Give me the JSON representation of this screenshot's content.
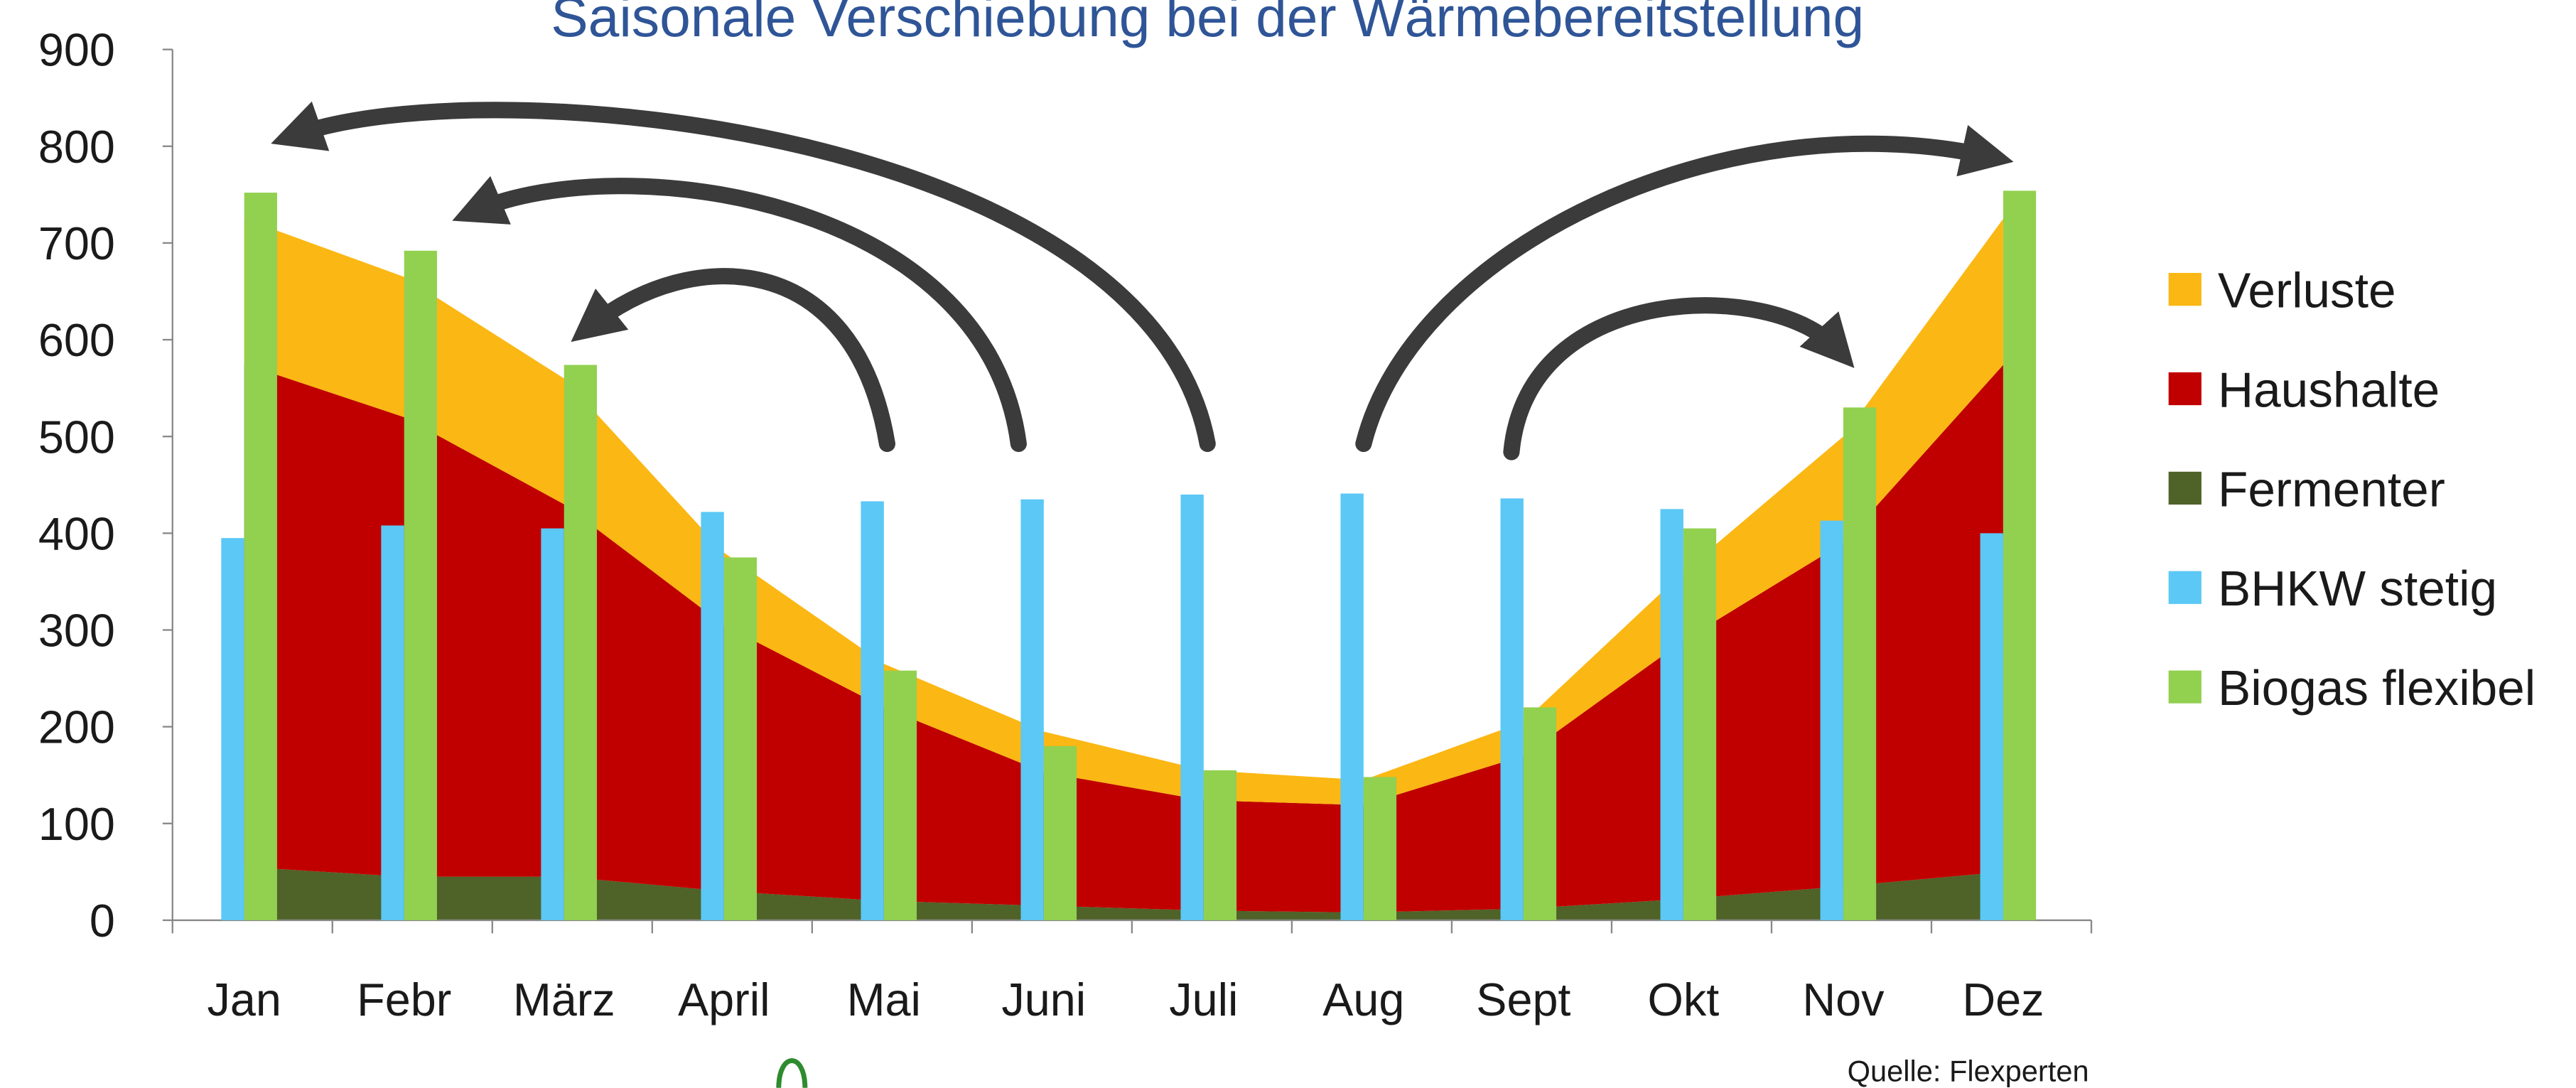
{
  "chart_data": {
    "type": "combo",
    "title": "Saisonale Verschiebung bei der Wärmebereitstellung",
    "source": "Quelle: Flexperten",
    "categories": [
      "Jan",
      "Febr",
      "März",
      "April",
      "Mai",
      "Juni",
      "Juli",
      "Aug",
      "Sept",
      "Okt",
      "Nov",
      "Dez"
    ],
    "ylim": [
      0,
      900
    ],
    "yticks": [
      0,
      100,
      200,
      300,
      400,
      500,
      600,
      700,
      800,
      900
    ],
    "legend": "right",
    "series": [
      {
        "name": "Verluste",
        "type": "area",
        "color": "#fbb714",
        "values": [
          150,
          145,
          130,
          75,
          45,
          42,
          31,
          26,
          35,
          71,
          110,
          151
        ]
      },
      {
        "name": "Haushalte",
        "type": "area",
        "color": "#c00000",
        "values": [
          520,
          475,
          385,
          275,
          200,
          138,
          114,
          111,
          158,
          267,
          355,
          524
        ]
      },
      {
        "name": "Fermenter",
        "type": "area",
        "color": "#4f6228",
        "values": [
          55,
          45,
          45,
          30,
          20,
          15,
          10,
          8,
          12,
          22,
          35,
          50
        ]
      },
      {
        "name": "BHKW stetig",
        "type": "bar",
        "color": "#5bc8f5",
        "values": [
          395,
          408,
          405,
          422,
          433,
          435,
          440,
          441,
          436,
          425,
          413,
          400
        ]
      },
      {
        "name": "Biogas flexibel",
        "type": "bar",
        "color": "#92d050",
        "values": [
          752,
          692,
          574,
          375,
          258,
          180,
          155,
          148,
          220,
          405,
          530,
          754
        ]
      }
    ]
  }
}
